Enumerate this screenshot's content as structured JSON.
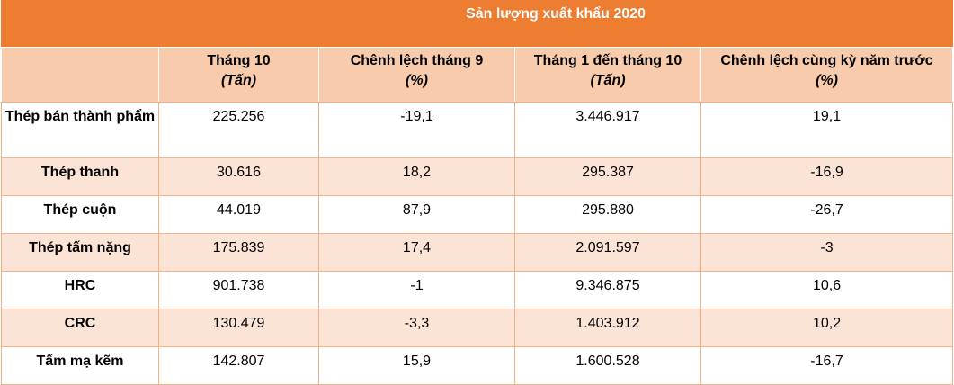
{
  "table": {
    "title": "Sản lượng xuất khẩu 2020",
    "columns": [
      {
        "label": "",
        "unit": ""
      },
      {
        "label": "Tháng 10",
        "unit": "(Tấn)"
      },
      {
        "label": "Chênh lệch tháng 9",
        "unit": "(%)"
      },
      {
        "label": "Tháng 1 đến tháng 10",
        "unit": "(Tấn)"
      },
      {
        "label": "Chênh lệch cùng kỳ năm trước",
        "unit": "(%)"
      }
    ],
    "rows": [
      [
        "Thép bán thành phẩm",
        "225.256",
        "-19,1",
        "3.446.917",
        "19,1"
      ],
      [
        "Thép thanh",
        "30.616",
        "18,2",
        "295.387",
        "-16,9"
      ],
      [
        "Thép cuộn",
        "44.019",
        "87,9",
        "295.880",
        "-26,7"
      ],
      [
        "Thép tấm nặng",
        "175.839",
        "17,4",
        "2.091.597",
        "-3"
      ],
      [
        "HRC",
        "901.738",
        "-1",
        "9.346.875",
        "10,6"
      ],
      [
        "CRC",
        "130.479",
        "-3,3",
        "1.403.912",
        "10,2"
      ],
      [
        "Tấm mạ kẽm",
        "142.807",
        "15,9",
        "1.600.528",
        "-16,7"
      ]
    ]
  },
  "colors": {
    "header_orange": "#ed7d31",
    "header_light": "#f8cbad",
    "band_light": "#fbe4d5",
    "border": "#f4b183"
  }
}
